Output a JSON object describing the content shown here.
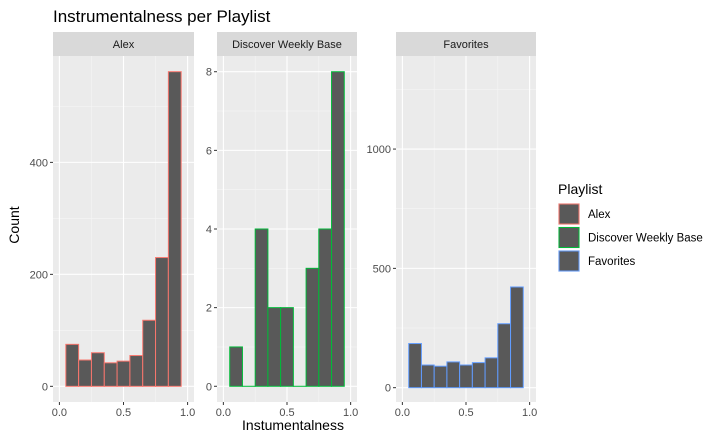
{
  "chart_data": {
    "type": "bar",
    "title": "Instrumentalness per Playlist",
    "xlabel": "Instumentalness",
    "ylabel": "Count",
    "bin_width": 0.1,
    "bin_centers": [
      0.1,
      0.2,
      0.3,
      0.4,
      0.5,
      0.6,
      0.7,
      0.8,
      0.9
    ],
    "legend": {
      "title": "Playlist",
      "placement": "right",
      "entries": [
        "Alex",
        "Discover Weekly Base",
        "Favorites"
      ]
    },
    "panels": [
      {
        "name": "Alex",
        "color": "#F8766D",
        "fill": "#595959",
        "values": [
          75,
          47,
          60,
          42,
          45,
          55,
          118,
          230,
          562
        ],
        "ylim": [
          -28,
          590
        ],
        "yticks": [
          0,
          200,
          400
        ],
        "xlim": [
          -0.05,
          1.05
        ],
        "xticks": [
          0.0,
          0.5,
          1.0
        ],
        "xticklabels": [
          "0.0",
          "0.5",
          "1.0"
        ]
      },
      {
        "name": "Discover Weekly Base",
        "color": "#00BA38",
        "fill": "#595959",
        "values": [
          1,
          0,
          4,
          2,
          2,
          0,
          3,
          4,
          8
        ],
        "ylim": [
          -0.4,
          8.4
        ],
        "yticks": [
          0,
          2,
          4,
          6,
          8
        ],
        "xlim": [
          -0.05,
          1.05
        ],
        "xticks": [
          0.0,
          0.5,
          1.0
        ],
        "xticklabels": [
          "0.0",
          "0.5",
          "1.0"
        ]
      },
      {
        "name": "Favorites",
        "color": "#619CFF",
        "fill": "#595959",
        "values": [
          185,
          95,
          90,
          108,
          95,
          105,
          125,
          268,
          422
        ],
        "ylim": [
          -60,
          1390
        ],
        "yticks": [
          0,
          500,
          1000
        ],
        "xlim": [
          -0.05,
          1.05
        ],
        "xticks": [
          0.0,
          0.5,
          1.0
        ],
        "xticklabels": [
          "0.0",
          "0.5",
          "1.0"
        ]
      }
    ]
  }
}
